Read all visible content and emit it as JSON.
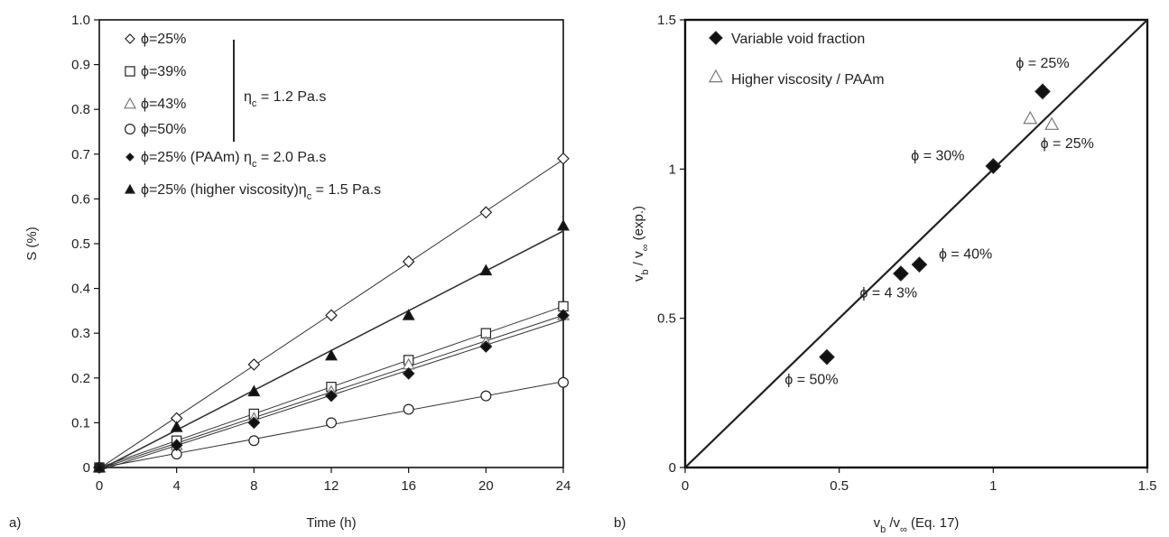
{
  "chart_data": [
    {
      "type": "scatter",
      "panel_label": "a)",
      "xlabel": "Time (h)",
      "ylabel": "S (%)",
      "xlim": [
        0,
        24
      ],
      "ylim": [
        0,
        1.0
      ],
      "xticks": [
        0,
        4,
        8,
        12,
        16,
        20,
        24
      ],
      "yticks": [
        0,
        0.1,
        0.2,
        0.3,
        0.4,
        0.5,
        0.6,
        0.7,
        0.8,
        0.9,
        1.0
      ],
      "xtick_labels": [
        "0",
        "4",
        "8",
        "12",
        "16",
        "20",
        "24"
      ],
      "ytick_labels": [
        "0",
        "0.1",
        "0.2",
        "0.3",
        "0.4",
        "0.5",
        "0.6",
        "0.7",
        "0.8",
        "0.9",
        "1.0"
      ],
      "grid": false,
      "legend_position": "top-left",
      "bracket_label": "η",
      "bracket_label_sub": "c",
      "bracket_label_rest": "= 1.2 Pa.s",
      "series": [
        {
          "name": "ϕ=25%",
          "marker": "diamond-open",
          "legend_text": "ϕ=25%",
          "legend_sub": "",
          "legend_rest": "",
          "x": [
            0,
            4,
            8,
            12,
            16,
            20,
            24
          ],
          "y": [
            0.0,
            0.11,
            0.23,
            0.34,
            0.46,
            0.57,
            0.69
          ]
        },
        {
          "name": "ϕ=39%",
          "marker": "square-open",
          "legend_text": "ϕ=39%",
          "legend_sub": "",
          "legend_rest": "",
          "x": [
            0,
            4,
            8,
            12,
            16,
            20,
            24
          ],
          "y": [
            0.0,
            0.06,
            0.12,
            0.18,
            0.24,
            0.3,
            0.36
          ]
        },
        {
          "name": "ϕ=43%",
          "marker": "triangle-open",
          "legend_text": "ϕ=43%",
          "legend_sub": "",
          "legend_rest": "",
          "x": [
            0,
            4,
            8,
            12,
            16,
            20,
            24
          ],
          "y": [
            0.0,
            0.05,
            0.11,
            0.17,
            0.23,
            0.28,
            0.34
          ]
        },
        {
          "name": "ϕ=50%",
          "marker": "circle-open",
          "legend_text": "ϕ=50%",
          "legend_sub": "",
          "legend_rest": "",
          "x": [
            0,
            4,
            8,
            12,
            16,
            20,
            24
          ],
          "y": [
            0.0,
            0.03,
            0.06,
            0.1,
            0.13,
            0.16,
            0.19
          ]
        },
        {
          "name": "ϕ=25% (PAAm) ηc = 2.0 Pa.s",
          "marker": "diamond-filled",
          "legend_text": "ϕ=25% (PAAm) η",
          "legend_sub": "c",
          "legend_rest": " = 2.0 Pa.s",
          "x": [
            0,
            4,
            8,
            12,
            16,
            20,
            24
          ],
          "y": [
            0.0,
            0.05,
            0.1,
            0.16,
            0.21,
            0.27,
            0.34
          ]
        },
        {
          "name": "ϕ=25% (higher viscosity)ηc = 1.5 Pa.s",
          "marker": "triangle-filled",
          "legend_text": "ϕ=25% (higher viscosity)η",
          "legend_sub": "c",
          "legend_rest": " = 1.5 Pa.s",
          "x": [
            0,
            4,
            8,
            12,
            16,
            20,
            24
          ],
          "y": [
            0.0,
            0.09,
            0.17,
            0.25,
            0.34,
            0.44,
            0.54
          ]
        }
      ]
    },
    {
      "type": "scatter",
      "panel_label": "b)",
      "xlabel": "v",
      "xlabel_sub1": "b",
      "xlabel_mid": " /v",
      "xlabel_sub2": "∞",
      "xlabel_rest": " (Eq. 17)",
      "ylabel": "v",
      "ylabel_sub1": "b",
      "ylabel_mid": " / v",
      "ylabel_sub2": "∞",
      "ylabel_rest": " (exp.)",
      "xlim": [
        0,
        1.5
      ],
      "ylim": [
        0,
        1.5
      ],
      "xticks": [
        0,
        0.5,
        1,
        1.5
      ],
      "yticks": [
        0,
        0.5,
        1,
        1.5
      ],
      "xtick_labels": [
        "0",
        "0.5",
        "1",
        "1.5"
      ],
      "ytick_labels": [
        "0",
        "0.5",
        "1",
        "1.5"
      ],
      "grid": false,
      "legend_position": "top-left",
      "reference_line": {
        "x": [
          0,
          1.5
        ],
        "y": [
          0,
          1.5
        ]
      },
      "series": [
        {
          "name": "Variable void fraction",
          "marker": "diamond-filled",
          "x": [
            0.46,
            0.7,
            0.76,
            1.0,
            1.16
          ],
          "y": [
            0.37,
            0.65,
            0.68,
            1.01,
            1.26
          ]
        },
        {
          "name": "Higher viscosity / PAAm",
          "marker": "triangle-open",
          "x": [
            1.12,
            1.19
          ],
          "y": [
            1.17,
            1.15
          ]
        }
      ],
      "annotations": [
        {
          "text": "ϕ = 25%",
          "x": 1.16,
          "y": 1.34
        },
        {
          "text": "ϕ = 25%",
          "x": 1.24,
          "y": 1.07
        },
        {
          "text": "ϕ = 30%",
          "x": 0.82,
          "y": 1.03
        },
        {
          "text": "ϕ = 40%",
          "x": 0.91,
          "y": 0.7
        },
        {
          "text": "ϕ = 4 3%",
          "x": 0.66,
          "y": 0.57
        },
        {
          "text": "ϕ = 50%",
          "x": 0.41,
          "y": 0.28
        }
      ]
    }
  ]
}
